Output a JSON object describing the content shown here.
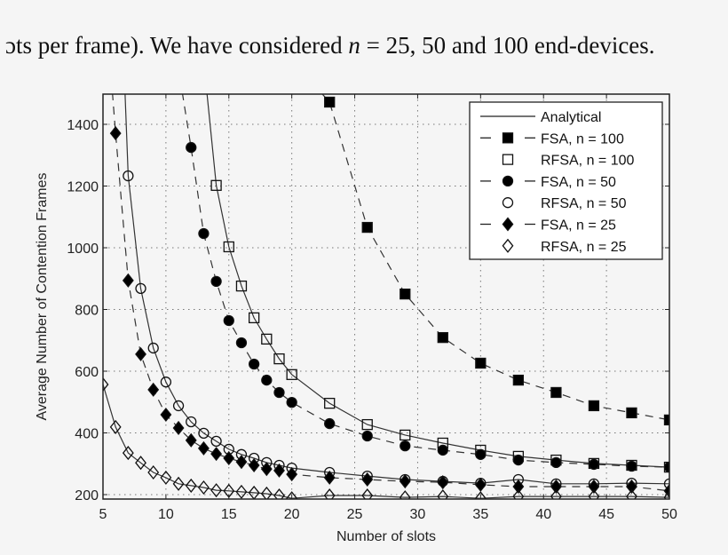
{
  "caption": {
    "text_before": "ɔts per frame). We have considered ",
    "math_var": "n",
    "text_after": " = 25, 50 and 100 end-devices."
  },
  "chart_data": {
    "type": "line",
    "title": "",
    "xlabel": "Number of slots",
    "ylabel": "Average Number of Contention Frames",
    "xlim": [
      5,
      50
    ],
    "ylim": [
      180,
      1500
    ],
    "xticks": [
      5,
      10,
      15,
      20,
      25,
      30,
      35,
      40,
      45,
      50
    ],
    "yticks": [
      200,
      400,
      600,
      800,
      1000,
      1200,
      1400
    ],
    "grid": true,
    "legend_position": "upper right",
    "legend": [
      {
        "label": "Analytical",
        "line": "solid",
        "marker": "none"
      },
      {
        "label": "FSA, n = 100",
        "line": "dashed",
        "marker": "square-filled"
      },
      {
        "label": "RFSA, n = 100",
        "line": "none",
        "marker": "square-open"
      },
      {
        "label": "FSA, n = 50",
        "line": "dashed",
        "marker": "circle-filled"
      },
      {
        "label": "RFSA, n = 50",
        "line": "none",
        "marker": "circle-open"
      },
      {
        "label": "FSA, n = 25",
        "line": "dashed",
        "marker": "diamond-filled"
      },
      {
        "label": "RFSA, n = 25",
        "line": "none",
        "marker": "diamond-open"
      }
    ],
    "series": [
      {
        "name": "FSA, n = 100",
        "line": "dashed",
        "marker": "square-filled",
        "x": [
          23,
          26,
          29,
          32,
          35,
          38,
          41,
          44,
          47,
          50
        ],
        "values": [
          1472,
          1066,
          850,
          709,
          626,
          571,
          531,
          488,
          465,
          442
        ]
      },
      {
        "name": "RFSA, n = 100",
        "line": "solid",
        "marker": "square-open",
        "x": [
          14,
          15,
          16,
          17,
          18,
          19,
          20,
          23,
          26,
          29,
          32,
          35,
          38,
          41,
          44,
          47,
          50
        ],
        "values": [
          1202,
          1003,
          876,
          773,
          704,
          640,
          589,
          496,
          427,
          393,
          367,
          344,
          324,
          312,
          301,
          295,
          289
        ]
      },
      {
        "name": "FSA, n = 50",
        "line": "dashed",
        "marker": "circle-filled",
        "x": [
          12,
          13,
          14,
          15,
          16,
          17,
          18,
          19,
          20,
          23,
          26,
          29,
          32,
          35,
          38,
          41,
          44,
          47,
          50
        ],
        "values": [
          1325,
          1046,
          891,
          764,
          692,
          623,
          571,
          531,
          499,
          430,
          390,
          358,
          344,
          330,
          312,
          304,
          298,
          292,
          289
        ]
      },
      {
        "name": "RFSA, n = 50",
        "line": "solid",
        "marker": "circle-open",
        "x": [
          7,
          8,
          9,
          10,
          11,
          12,
          13,
          14,
          15,
          16,
          17,
          18,
          19,
          20,
          23,
          26,
          29,
          32,
          35,
          38,
          41,
          44,
          47,
          50
        ],
        "values": [
          1233,
          868,
          675,
          565,
          488,
          436,
          399,
          373,
          347,
          330,
          318,
          304,
          295,
          286,
          272,
          260,
          249,
          243,
          237,
          249,
          235,
          235,
          237,
          235
        ]
      },
      {
        "name": "FSA, n = 25",
        "line": "dashed",
        "marker": "diamond-filled",
        "x": [
          6,
          7,
          8,
          9,
          10,
          11,
          12,
          13,
          14,
          15,
          16,
          17,
          18,
          19,
          20,
          23,
          26,
          29,
          32,
          35,
          38,
          41,
          44,
          47,
          50
        ],
        "values": [
          1371,
          894,
          655,
          540,
          459,
          416,
          376,
          350,
          332,
          318,
          306,
          295,
          283,
          278,
          266,
          255,
          249,
          243,
          240,
          232,
          226,
          226,
          226,
          226,
          212
        ]
      },
      {
        "name": "RFSA, n = 25",
        "line": "solid",
        "marker": "diamond-open",
        "x": [
          5,
          6,
          7,
          8,
          9,
          10,
          11,
          12,
          13,
          14,
          15,
          16,
          17,
          18,
          19,
          20,
          23,
          26,
          29,
          32,
          35,
          38,
          41,
          44,
          47,
          50
        ],
        "values": [
          557,
          419,
          335,
          303,
          272,
          255,
          235,
          229,
          223,
          214,
          212,
          209,
          206,
          203,
          197,
          188,
          197,
          197,
          191,
          194,
          188,
          194,
          194,
          194,
          194,
          191
        ]
      }
    ],
    "analytical_curves": [
      {
        "name": "Analytical, n = 100",
        "top_entry_x": 13.2
      },
      {
        "name": "Analytical, n = 50",
        "top_entry_x": 6.8
      },
      {
        "name": "Analytical, n = 25",
        "top_entry_x": 5.0
      }
    ]
  }
}
